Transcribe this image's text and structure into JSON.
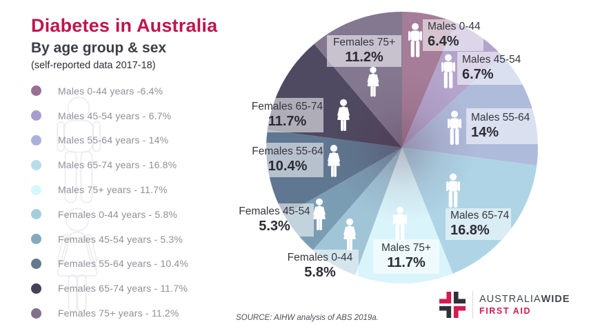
{
  "header": {
    "title": "Diabetes in Australia",
    "subtitle": "By age group & sex",
    "note": "(self-reported data 2017-18)"
  },
  "legend": {
    "items": [
      {
        "label": "Males 0-44 years -6.4%",
        "color": "#9a6f94"
      },
      {
        "label": "Males 45-54 years - 6.7%",
        "color": "#a89ecd"
      },
      {
        "label": "Males 55-64 years - 14%",
        "color": "#a8b2d9"
      },
      {
        "label": "Males 65-74 years - 16.8%",
        "color": "#b9dcea"
      },
      {
        "label": "Males 75+ years - 11.7%",
        "color": "#d5f7f9"
      },
      {
        "label": "Females 0-44 years - 5.8%",
        "color": "#a5cedd"
      },
      {
        "label": "Females 45-54 years - 5.3%",
        "color": "#85a9bc"
      },
      {
        "label": "Females 55-64 years - 10.4%",
        "color": "#64798e"
      },
      {
        "label": "Females 65-74 years - 11.7%",
        "color": "#454158"
      },
      {
        "label": "Females 75+ years - 11.2%",
        "color": "#82718b"
      }
    ]
  },
  "chart_data": {
    "type": "pie",
    "title": "Diabetes in Australia by age group & sex (self-reported data 2017-18)",
    "units": "percent",
    "start_angle_deg": 0,
    "direction": "clockwise",
    "total": 100,
    "legend_position": "left",
    "slices": [
      {
        "label": "Males 0-44",
        "value": 6.4,
        "pct_label": "6.4%",
        "color": "#a57d98",
        "sex": "male"
      },
      {
        "label": "Males 45-54",
        "value": 6.7,
        "pct_label": "6.7%",
        "color": "#b3a4cc",
        "sex": "male"
      },
      {
        "label": "Males 55-64",
        "value": 14,
        "pct_label": "14%",
        "color": "#aebbdb",
        "sex": "male"
      },
      {
        "label": "Males 65-74",
        "value": 16.8,
        "pct_label": "16.8%",
        "color": "#aed4e6",
        "sex": "male"
      },
      {
        "label": "Males 75+",
        "value": 11.7,
        "pct_label": "11.7%",
        "color": "#d9f4fa",
        "sex": "male"
      },
      {
        "label": "Females 0-44",
        "value": 5.8,
        "pct_label": "5.8%",
        "color": "#a0c5d7",
        "sex": "female"
      },
      {
        "label": "Females 45-54",
        "value": 5.3,
        "pct_label": "5.3%",
        "color": "#7b9db4",
        "sex": "female"
      },
      {
        "label": "Females 55-64",
        "value": 10.4,
        "pct_label": "10.4%",
        "color": "#5f7790",
        "sex": "female"
      },
      {
        "label": "Females 65-74",
        "value": 11.7,
        "pct_label": "11.7%",
        "color": "#4f4a61",
        "sex": "female"
      },
      {
        "label": "Females 75+",
        "value": 11.2,
        "pct_label": "11.2%",
        "color": "#837890",
        "sex": "female"
      }
    ]
  },
  "source": "SOURCE: AIHW analysis of ABS 2019a.",
  "logo": {
    "brand_part1": "AUSTRALIA",
    "brand_part2": "WIDE",
    "brand_line2": "FIRST AID",
    "accent_color": "#d41a50",
    "dark_color": "#2e3138"
  },
  "colors": {
    "title": "#c0144d",
    "legend_text": "#8f8f99"
  }
}
